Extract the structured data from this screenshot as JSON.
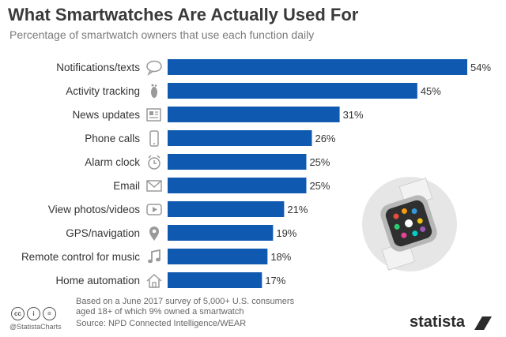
{
  "header": {
    "title": "What Smartwatches Are Actually Used For",
    "subtitle": "Percentage of smartwatch owners that use each function daily"
  },
  "chart_data": {
    "type": "bar",
    "orientation": "horizontal",
    "bar_color": "#0f5ab0",
    "value_suffix": "%",
    "grid": false,
    "categories": [
      "Notifications/texts",
      "Activity tracking",
      "News updates",
      "Phone calls",
      "Alarm clock",
      "Email",
      "View photos/videos",
      "GPS/navigation",
      "Remote control for music",
      "Home automation"
    ],
    "icons": [
      "speech-bubble-icon",
      "footprint-icon",
      "newspaper-icon",
      "smartphone-icon",
      "alarm-clock-icon",
      "envelope-icon",
      "video-play-icon",
      "map-pin-icon",
      "music-note-icon",
      "house-icon"
    ],
    "values": [
      54,
      45,
      31,
      26,
      25,
      25,
      21,
      19,
      18,
      17
    ],
    "xlim": [
      0,
      54
    ]
  },
  "footer": {
    "note_line1": "Based on a June 2017 survey of 5,000+ U.S. consumers",
    "note_line2": "aged 18+ of which 9% owned a smartwatch",
    "source": "Source: NPD Connected Intelligence/WEAR",
    "handle": "@StatistaCharts",
    "brand": "statista",
    "license_icons": [
      "cc",
      "i",
      "="
    ]
  }
}
